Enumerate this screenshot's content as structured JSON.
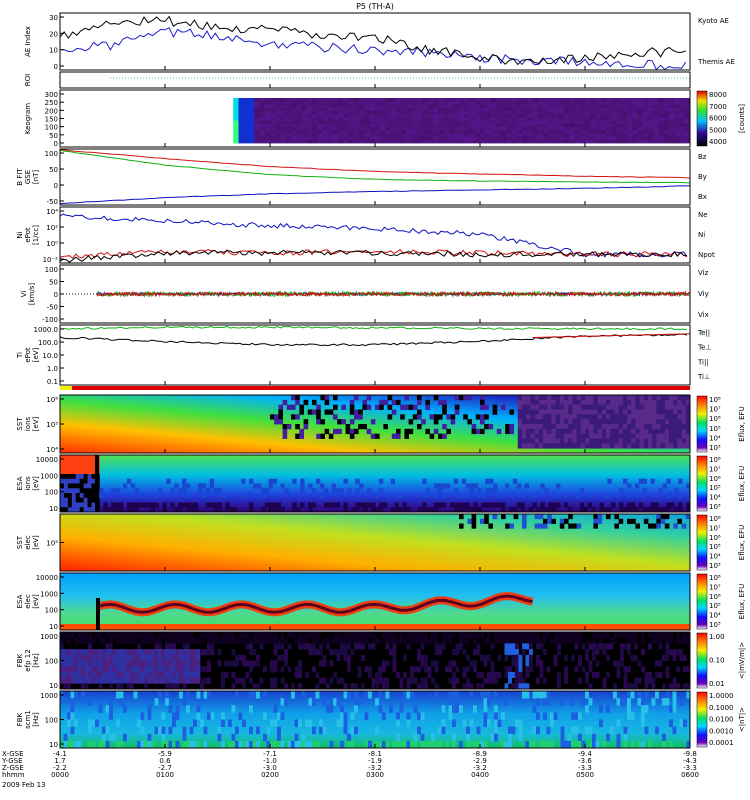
{
  "title": "P5 (TH-A)",
  "panels": [
    {
      "id": "ae",
      "ylabel": [
        "AE Index"
      ],
      "ticks": [
        "30",
        "20",
        "10",
        "0"
      ],
      "legend": [
        {
          "text": "Kyoto AE",
          "color": "#1c1cc8"
        },
        {
          "text": "Themis AE",
          "color": "#000000"
        }
      ]
    },
    {
      "id": "roi",
      "ylabel": [
        "ROI"
      ],
      "ticks": [],
      "legend": []
    },
    {
      "id": "keogram",
      "ylabel": [
        "Keogram"
      ],
      "ticks": [
        "300",
        "250",
        "200",
        "150",
        "100",
        "50",
        "0"
      ],
      "legend": []
    },
    {
      "id": "bfield",
      "ylabel": [
        "B FIT",
        "GSE",
        "[nT]"
      ],
      "ticks": [
        "100",
        "50",
        "0",
        "-50"
      ],
      "legend": [
        {
          "text": "Bz",
          "color": "#d01010"
        },
        {
          "text": "By",
          "color": "#10b010"
        },
        {
          "text": "Bx",
          "color": "#1010c0"
        }
      ]
    },
    {
      "id": "density",
      "ylabel": [
        "Ni",
        "ePot",
        "[1/cc]"
      ],
      "ticks": [
        "10⁴",
        "10²",
        "10⁰",
        "10⁻²"
      ],
      "legend": [
        {
          "text": "Ne",
          "color": "#d01010"
        },
        {
          "text": "Ni",
          "color": "#000000"
        },
        {
          "text": "Npot",
          "color": "#1010c0"
        }
      ]
    },
    {
      "id": "velocity",
      "ylabel": [
        "Vi",
        "[km/s]"
      ],
      "ticks": [
        "100",
        "50",
        "0",
        "-50",
        "-100"
      ],
      "legend": [
        {
          "text": "Viz",
          "color": "#d01010"
        },
        {
          "text": "Viy",
          "color": "#10b010"
        },
        {
          "text": "Vix",
          "color": "#1010c0"
        }
      ]
    },
    {
      "id": "temp",
      "ylabel": [
        "Ti",
        "ePot",
        "[eV]"
      ],
      "ticks": [
        "1000.0",
        "100.0",
        "10.0",
        "1.0",
        "0.1"
      ],
      "legend": [
        {
          "text": "Te||",
          "color": "#000000"
        },
        {
          "text": "Te⊥",
          "color": "#d01010"
        },
        {
          "text": "Ti||",
          "color": "#10b010"
        },
        {
          "text": "Ti⊥",
          "color": "#1010c0"
        }
      ]
    },
    {
      "id": "sst_i",
      "ylabel": [
        "SST",
        "ions",
        "[eV]"
      ],
      "ticks": [
        "10⁶",
        "10⁵",
        "10⁴"
      ],
      "legend": []
    },
    {
      "id": "esa_i",
      "ylabel": [
        "ESA",
        "ions",
        "[eV]"
      ],
      "ticks": [
        "10000",
        "1000",
        "100",
        "10"
      ],
      "legend": []
    },
    {
      "id": "sst_e",
      "ylabel": [
        "SST",
        "elec",
        "[eV]"
      ],
      "ticks": [
        "10⁵"
      ],
      "legend": []
    },
    {
      "id": "esa_e",
      "ylabel": [
        "ESA",
        "elec",
        "[eV]"
      ],
      "ticks": [
        "10000",
        "1000",
        "100",
        "10"
      ],
      "legend": []
    },
    {
      "id": "fbk1",
      "ylabel": [
        "FBK",
        "efp 12",
        "[Hz]"
      ],
      "ticks": [
        "1000",
        "100",
        "10"
      ],
      "legend": []
    },
    {
      "id": "fbk2",
      "ylabel": [
        "FBK",
        "scm1",
        "[Hz]"
      ],
      "ticks": [
        "1000",
        "100",
        "10"
      ],
      "legend": []
    }
  ],
  "colorbars": [
    {
      "id": "keogram",
      "labels": [
        "8000",
        "7000",
        "6000",
        "5000",
        "4000"
      ],
      "unit": "[counts]"
    },
    {
      "id": "sst_i",
      "labels": [
        "10⁸",
        "10⁷",
        "10⁶",
        "10⁵",
        "10⁴",
        "10³"
      ],
      "unit": "Eflux, EFU"
    },
    {
      "id": "esa_i",
      "labels": [
        "10⁸",
        "10⁷",
        "10⁶",
        "10⁵",
        "10⁴",
        "10³"
      ],
      "unit": "Eflux, EFU"
    },
    {
      "id": "sst_e",
      "labels": [
        "10⁸",
        "10⁷",
        "10⁶",
        "10⁵",
        "10⁴",
        "10³"
      ],
      "unit": "Eflux, EFU"
    },
    {
      "id": "esa_e",
      "labels": [
        "10⁸",
        "10⁷",
        "10⁶",
        "10⁵",
        "10⁴",
        "10³"
      ],
      "unit": "Eflux, EFU"
    },
    {
      "id": "fbk1",
      "labels": [
        "1.00",
        "0.10",
        "0.01"
      ],
      "unit": "<|mV/m|>"
    },
    {
      "id": "fbk2",
      "labels": [
        "1.0000",
        "0.1000",
        "0.0100",
        "0.0010",
        "0.0001"
      ],
      "unit": "<|nT|>"
    }
  ],
  "xaxis": {
    "row_labels": [
      "X-GSE",
      "Y-GSE",
      "Z-GSE",
      "hhmm"
    ],
    "date": "2009 Feb 13",
    "columns": [
      {
        "x": "-4.1",
        "y": "1.7",
        "z": "-2.2",
        "t": "0000"
      },
      {
        "x": "-5.9",
        "y": "0.6",
        "z": "-2.7",
        "t": "0100"
      },
      {
        "x": "-7.1",
        "y": "-1.0",
        "z": "-3.0",
        "t": "0200"
      },
      {
        "x": "-8.1",
        "y": "-1.9",
        "z": "-3.2",
        "t": "0300"
      },
      {
        "x": "-8.9",
        "y": "-2.9",
        "z": "-3.2",
        "t": "0400"
      },
      {
        "x": "-9.4",
        "y": "-3.6",
        "z": "-3.3",
        "t": "0500"
      },
      {
        "x": "-9.8",
        "y": "-4.3",
        "z": "-3.3",
        "t": "0600"
      }
    ]
  },
  "chart_data": [
    {
      "type": "line",
      "title": "AE Index",
      "x_unit": "hhmm",
      "xlim": [
        "0000",
        "0600"
      ],
      "ylim": [
        0,
        30
      ],
      "series": [
        {
          "name": "Kyoto AE",
          "x": [
            0,
            0.5,
            1,
            1.5,
            2,
            2.5,
            3,
            3.5,
            4,
            4.5,
            5,
            5.5,
            6
          ],
          "y": [
            12,
            13,
            20,
            18,
            14,
            12,
            10,
            9,
            6,
            5,
            4,
            3,
            2
          ]
        },
        {
          "name": "Themis AE",
          "x": [
            0,
            0.5,
            1,
            1.5,
            2,
            2.5,
            3,
            3.5,
            4,
            4.5,
            5,
            5.5,
            6
          ],
          "y": [
            17,
            25,
            26,
            22,
            21,
            18,
            17,
            11,
            6,
            5,
            6,
            9,
            10
          ]
        }
      ]
    },
    {
      "type": "line",
      "title": "B FIT GSE",
      "ylim": [
        -75,
        100
      ],
      "series": [
        {
          "name": "Bz",
          "x": [
            0,
            1,
            2,
            3,
            4,
            5,
            6
          ],
          "y": [
            98,
            70,
            45,
            30,
            22,
            15,
            10
          ]
        },
        {
          "name": "By",
          "x": [
            0,
            1,
            2,
            3,
            4,
            5,
            6
          ],
          "y": [
            95,
            50,
            20,
            5,
            0,
            -3,
            -5
          ]
        },
        {
          "name": "Bx",
          "x": [
            0,
            1,
            2,
            3,
            4,
            5,
            6
          ],
          "y": [
            -70,
            -52,
            -40,
            -33,
            -28,
            -23,
            -15
          ]
        }
      ]
    },
    {
      "type": "line",
      "title": "Ni",
      "ylabel": "[1/cc]",
      "yscale": "log",
      "series": [
        {
          "name": "Npot",
          "x": [
            0,
            1,
            2,
            3,
            4,
            5,
            6
          ],
          "y": [
            3000,
            800,
            200,
            100,
            20,
            0.1,
            0.1
          ]
        },
        {
          "name": "Ne",
          "x": [
            0,
            1,
            2,
            3,
            4,
            5,
            6
          ],
          "y": [
            0.05,
            0.2,
            0.15,
            0.2,
            0.15,
            0.1,
            0.1
          ]
        },
        {
          "name": "Ni",
          "x": [
            0,
            1,
            2,
            3,
            4,
            5,
            6
          ],
          "y": [
            0.02,
            0.15,
            0.15,
            0.15,
            0.1,
            0.1,
            0.1
          ]
        }
      ]
    },
    {
      "type": "line",
      "title": "Ti",
      "ylabel": "[eV]",
      "yscale": "log",
      "series": [
        {
          "name": "Ti||",
          "x": [
            0,
            1,
            2,
            3,
            4,
            5,
            6
          ],
          "y": [
            1500,
            2000,
            2000,
            1800,
            1600,
            1500,
            1500
          ]
        },
        {
          "name": "Te||",
          "x": [
            0,
            1,
            2,
            3,
            4,
            5,
            6
          ],
          "y": [
            300,
            150,
            80,
            80,
            150,
            400,
            500
          ]
        }
      ]
    }
  ]
}
